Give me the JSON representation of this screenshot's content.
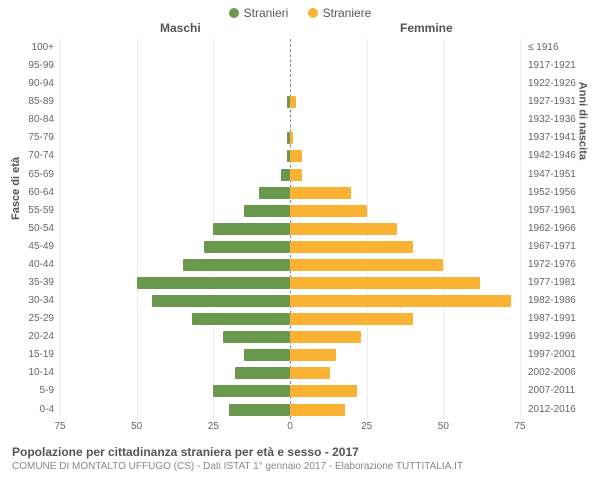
{
  "legend": {
    "male": {
      "label": "Stranieri",
      "color": "#6a994e"
    },
    "female": {
      "label": "Straniere",
      "color": "#f9b233"
    }
  },
  "headers": {
    "male": "Maschi",
    "female": "Femmine"
  },
  "axes": {
    "left_title": "Fasce di età",
    "right_title": "Anni di nascita",
    "xmax": 75,
    "xticks_left": [
      75,
      50,
      25,
      0
    ],
    "xticks_right": [
      0,
      25,
      50,
      75
    ]
  },
  "grid_color": "#eeeeee",
  "center_line_color": "#888888",
  "background_color": "#ffffff",
  "rows": [
    {
      "age": "100+",
      "birth": "≤ 1916",
      "m": 0,
      "f": 0
    },
    {
      "age": "95-99",
      "birth": "1917-1921",
      "m": 0,
      "f": 0
    },
    {
      "age": "90-94",
      "birth": "1922-1926",
      "m": 0,
      "f": 0
    },
    {
      "age": "85-89",
      "birth": "1927-1931",
      "m": 1,
      "f": 2
    },
    {
      "age": "80-84",
      "birth": "1932-1936",
      "m": 0,
      "f": 0
    },
    {
      "age": "75-79",
      "birth": "1937-1941",
      "m": 1,
      "f": 1
    },
    {
      "age": "70-74",
      "birth": "1942-1946",
      "m": 1,
      "f": 4
    },
    {
      "age": "65-69",
      "birth": "1947-1951",
      "m": 3,
      "f": 4
    },
    {
      "age": "60-64",
      "birth": "1952-1956",
      "m": 10,
      "f": 20
    },
    {
      "age": "55-59",
      "birth": "1957-1961",
      "m": 15,
      "f": 25
    },
    {
      "age": "50-54",
      "birth": "1962-1966",
      "m": 25,
      "f": 35
    },
    {
      "age": "45-49",
      "birth": "1967-1971",
      "m": 28,
      "f": 40
    },
    {
      "age": "40-44",
      "birth": "1972-1976",
      "m": 35,
      "f": 50
    },
    {
      "age": "35-39",
      "birth": "1977-1981",
      "m": 50,
      "f": 62
    },
    {
      "age": "30-34",
      "birth": "1982-1986",
      "m": 45,
      "f": 72
    },
    {
      "age": "25-29",
      "birth": "1987-1991",
      "m": 32,
      "f": 40
    },
    {
      "age": "20-24",
      "birth": "1992-1996",
      "m": 22,
      "f": 23
    },
    {
      "age": "15-19",
      "birth": "1997-2001",
      "m": 15,
      "f": 15
    },
    {
      "age": "10-14",
      "birth": "2002-2006",
      "m": 18,
      "f": 13
    },
    {
      "age": "5-9",
      "birth": "2007-2011",
      "m": 25,
      "f": 22
    },
    {
      "age": "0-4",
      "birth": "2012-2016",
      "m": 20,
      "f": 18
    }
  ],
  "caption": {
    "title": "Popolazione per cittadinanza straniera per età e sesso - 2017",
    "subtitle": "COMUNE DI MONTALTO UFFUGO (CS) - Dati ISTAT 1° gennaio 2017 - Elaborazione TUTTITALIA.IT"
  }
}
